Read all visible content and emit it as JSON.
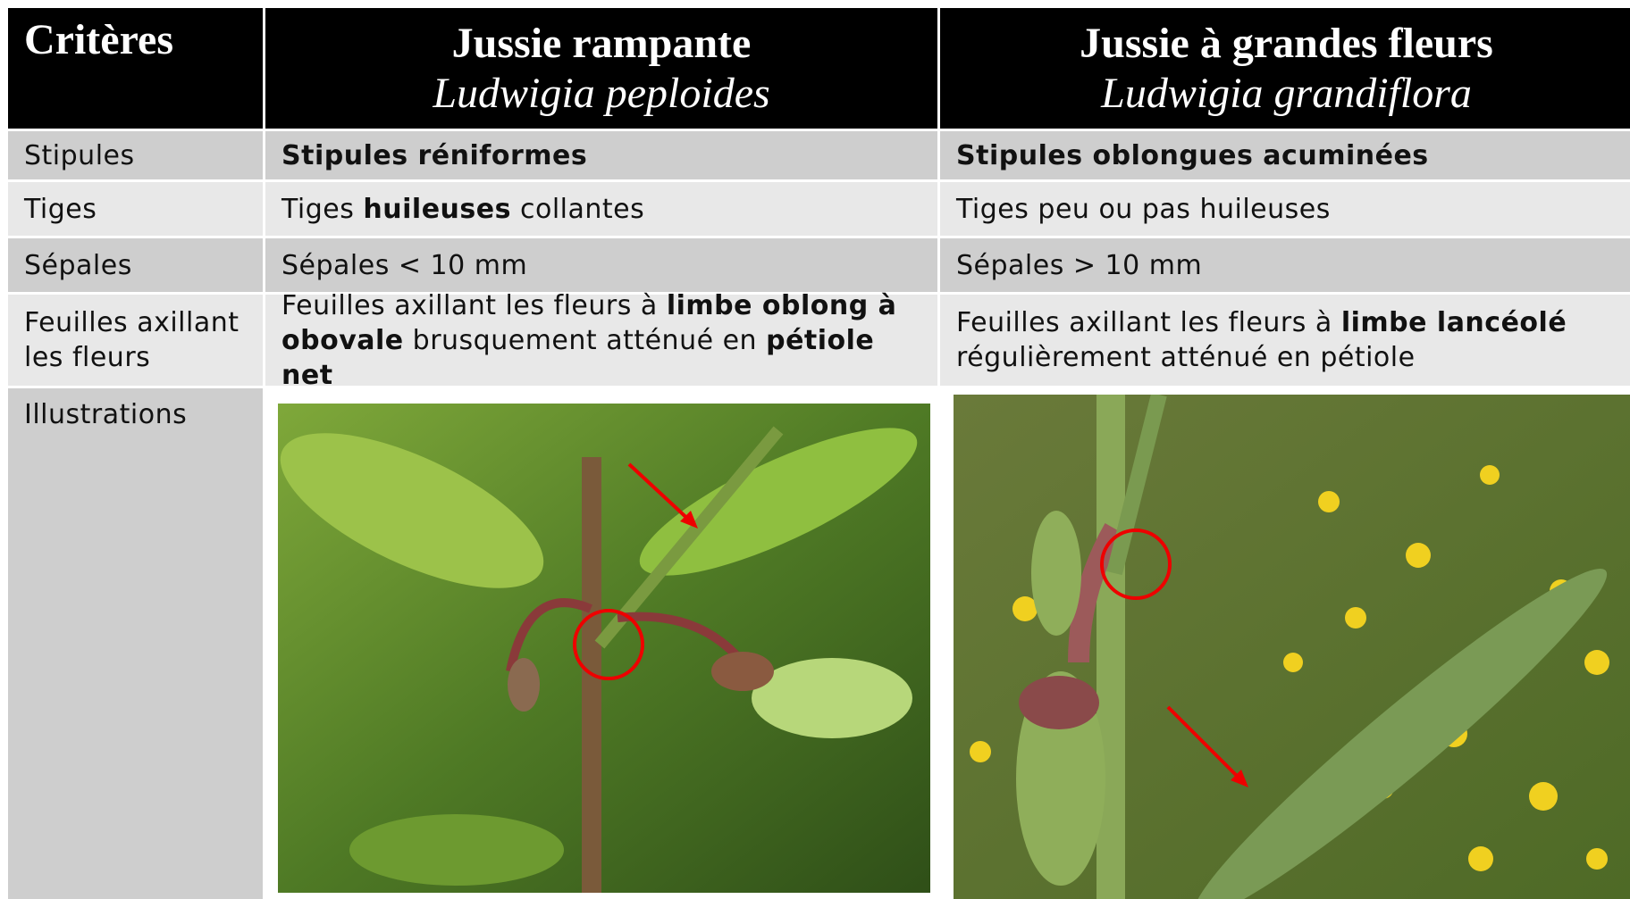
{
  "header": [
    "Critères",
    {
      "name": "Jussie rampante",
      "latin": "Ludwigia peploides"
    },
    {
      "name": "Jussie à grandes fleurs",
      "latin": "Ludwigia grandiflora"
    }
  ],
  "rows": [
    {
      "label": "Stipules",
      "cells": [
        [
          {
            "text": "Stipules réniformes",
            "bold": true
          }
        ],
        [
          {
            "text": "Stipules oblongues acuminées",
            "bold": true
          }
        ]
      ]
    },
    {
      "label": "Tiges",
      "cells": [
        [
          {
            "text": "Tiges ",
            "bold": false
          },
          {
            "text": "huileuses",
            "bold": true
          },
          {
            "text": " collantes",
            "bold": false
          }
        ],
        [
          {
            "text": "Tiges peu ou pas huileuses",
            "bold": false
          }
        ]
      ]
    },
    {
      "label": "Sépales",
      "cells": [
        [
          {
            "text": "Sépales  < 10 mm",
            "bold": false
          }
        ],
        [
          {
            "text": "Sépales  > 10 mm",
            "bold": false
          }
        ]
      ]
    },
    {
      "label": "Feuilles axillant les fleurs",
      "cells": [
        [
          {
            "text": "Feuilles axillant les fleurs à ",
            "bold": false
          },
          {
            "text": "limbe oblong à obovale",
            "bold": true
          },
          {
            "text": " brusquement atténué en ",
            "bold": false
          },
          {
            "text": "pétiole net",
            "bold": true
          }
        ],
        [
          {
            "text": "Feuilles axillant les fleurs à ",
            "bold": false
          },
          {
            "text": "limbe lancéolé",
            "bold": true
          },
          {
            "text": " régulièrement atténué en pétiole",
            "bold": false
          }
        ]
      ]
    }
  ],
  "illustrations": {
    "label": "Illustrations"
  }
}
